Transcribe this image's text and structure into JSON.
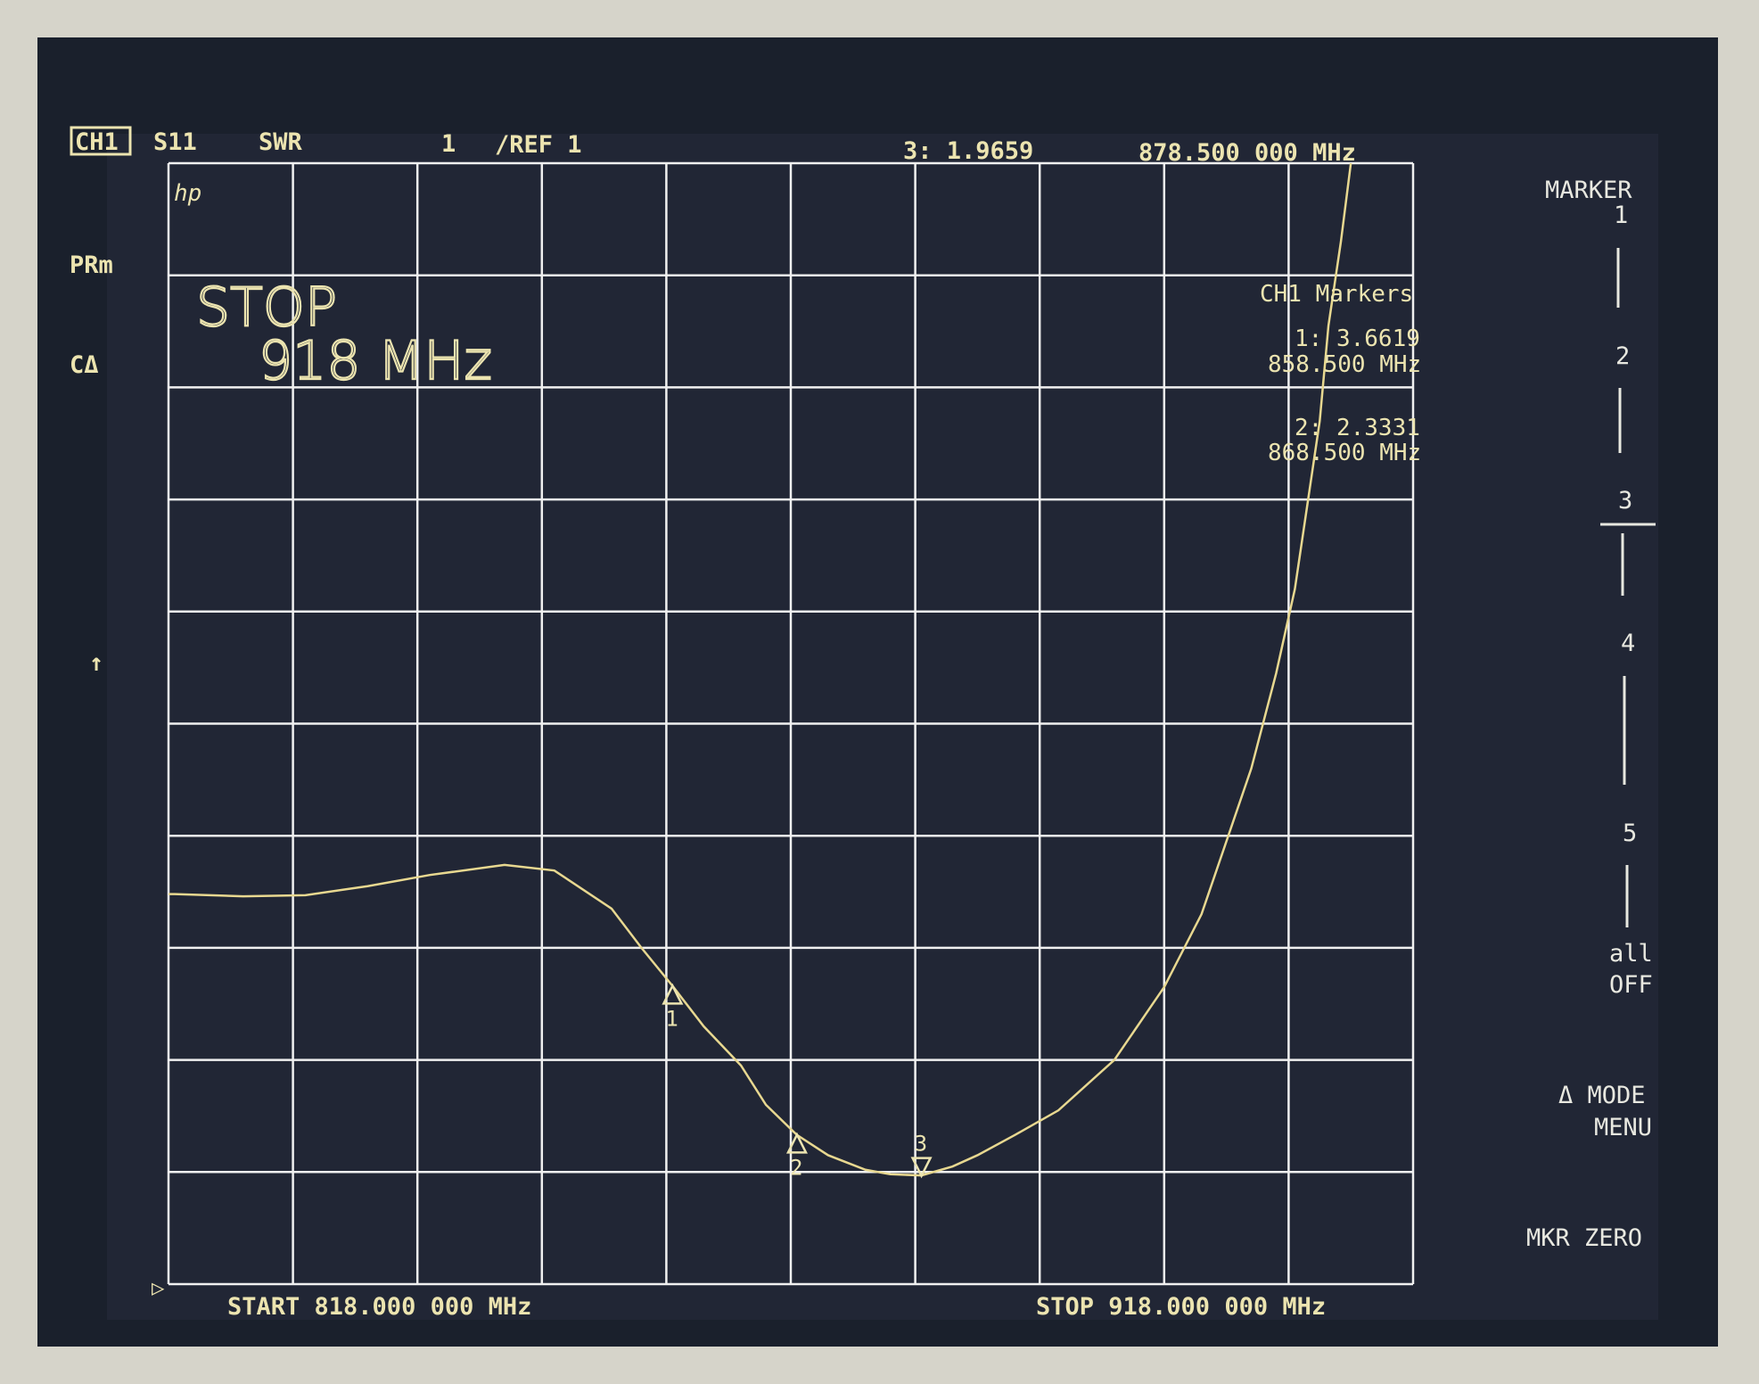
{
  "header": {
    "channel": "CH1",
    "parameter": "S11",
    "format": "SWR",
    "scale": "1",
    "reference": "/REF 1",
    "active_marker_readout": "3: 1.9659",
    "active_marker_freq": "878.500 000 MHz"
  },
  "left_annotations": [
    "PRm",
    "CΔ",
    "↑"
  ],
  "logo": "hp",
  "entry_display": {
    "line1": "STOP",
    "line2": "918 MHz"
  },
  "marker_table": {
    "title": "CH1 Markers",
    "entries": [
      {
        "value": "1: 3.6619",
        "freq": "858.500 MHz"
      },
      {
        "value": "2: 2.3331",
        "freq": "868.500 MHz"
      }
    ]
  },
  "softkeys": {
    "title": "MARKER",
    "items": [
      "1",
      "2",
      "3",
      "4",
      "5"
    ],
    "all_off": [
      "all",
      "OFF"
    ],
    "delta_mode": [
      "Δ MODE",
      "MENU"
    ],
    "mkr_zero": "MKR ZERO"
  },
  "footer": {
    "start": "START 818.000 000 MHz",
    "stop": "STOP 918.000 000 MHz"
  },
  "colors": {
    "trace": "#e8d890",
    "grid": "#f0f0f0",
    "text": "#ece4b0",
    "screen": "#1c2230"
  },
  "chart_data": {
    "type": "line",
    "title": "",
    "xlabel": "",
    "ylabel": "",
    "xlim": [
      818,
      918
    ],
    "ylim": [
      1,
      11
    ],
    "x_divisions": 10,
    "y_divisions": 10,
    "grid": true,
    "series": [
      {
        "x": [
          818,
          818.5,
          824,
          829,
          834,
          839,
          845,
          849,
          853.6,
          856,
          858.5,
          861,
          864,
          866,
          868.5,
          871,
          874,
          876,
          878.5,
          881,
          883,
          886,
          889.5,
          894,
          898,
          901,
          903,
          905,
          907,
          908.5,
          909.5,
          910.5,
          911.2,
          912.2,
          913
        ],
        "y": [
          4.48,
          4.48,
          4.46,
          4.47,
          4.55,
          4.65,
          4.74,
          4.69,
          4.35,
          4.0,
          3.66,
          3.3,
          2.95,
          2.6,
          2.33,
          2.15,
          2.02,
          1.98,
          1.97,
          2.05,
          2.15,
          2.33,
          2.55,
          3.0,
          3.65,
          4.3,
          4.95,
          5.6,
          6.45,
          7.2,
          7.95,
          8.7,
          9.55,
          10.3,
          11.0
        ]
      }
    ],
    "markers": [
      {
        "id": "1",
        "x": 858.5,
        "y": 3.6619
      },
      {
        "id": "2",
        "x": 868.5,
        "y": 2.3331
      },
      {
        "id": "3",
        "x": 878.5,
        "y": 1.9659
      }
    ]
  }
}
